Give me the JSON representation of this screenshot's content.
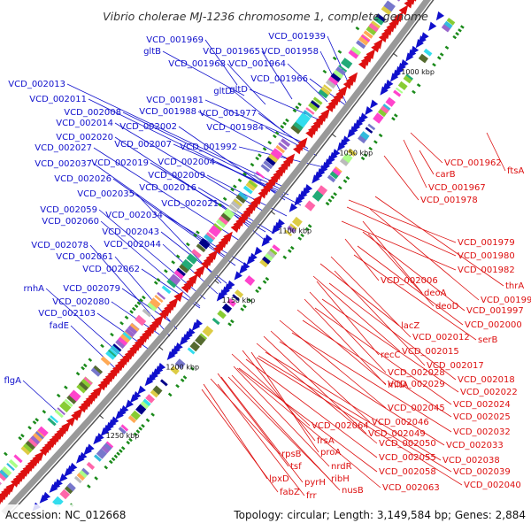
{
  "title": "Vibrio cholerae MJ-1236 chromosome 1, complete genome",
  "accession": "Accession: NC_012668",
  "summary": "Topology: circular; Length: 3,149,584 bp; Genes: 2,884",
  "ruler_labels": [
    "1000 kbp",
    "1050 kbp",
    "1100 kbp",
    "1150 kbp",
    "1200 kbp",
    "1250 kbp"
  ],
  "colors": {
    "reverse_strand": "#1010cc",
    "forward_strand": "#dd1010",
    "backbone": "#999999",
    "rna": "#1a8a1a"
  },
  "reverse_labels": [
    "VCD_001939",
    "VCD_001969",
    "gltB",
    "VCD_001965",
    "VCD_001958",
    "VCD_001968",
    "VCD_001964",
    "VCD_001966",
    "gltD",
    "gltD",
    "VCD_002013",
    "VCD_002011",
    "VCD_001981",
    "VCD_002008",
    "VCD_001988",
    "VCD_001977",
    "VCD_002014",
    "VCD_002002",
    "VCD_001984",
    "VCD_002020",
    "VCD_002007",
    "VCD_001992",
    "VCD_002027",
    "VCD_002037",
    "VCD_002019",
    "VCD_002004",
    "VCD_002009",
    "VCD_002026",
    "VCD_002016",
    "VCD_002035",
    "VCD_002021",
    "VCD_002059",
    "VCD_002034",
    "VCD_002060",
    "VCD_002043",
    "VCD_002078",
    "VCD_002044",
    "VCD_002061",
    "VCD_002062",
    "rnhA",
    "VCD_002079",
    "VCD_002080",
    "VCD_002103",
    "fadE",
    "flgA"
  ],
  "forward_labels": [
    "VCD_001962",
    "ftsA",
    "carB",
    "VCD_001967",
    "VCD_001978",
    "VCD_001979",
    "VCD_001980",
    "VCD_001982",
    "thrA",
    "VCD_002006",
    "deoA",
    "VCD_001991",
    "deoD",
    "VCD_001997",
    "VCD_002000",
    "lacZ",
    "VCD_002012",
    "serB",
    "VCD_002015",
    "recC",
    "VCD_002017",
    "VCD_002028",
    "VCD_002018",
    "mltA",
    "VCD_002029",
    "VCD_002022",
    "VCD_002024",
    "VCD_002045",
    "VCD_002025",
    "VCD_002046",
    "VCD_002064",
    "VCD_002049",
    "VCD_002032",
    "frsA",
    "VCD_002050",
    "VCD_002033",
    "proA",
    "rpsB",
    "VCD_002055",
    "VCD_002038",
    "tsf",
    "nrdR",
    "VCD_002058",
    "VCD_002039",
    "lpxD",
    "pyrH",
    "ribH",
    "VCD_002040",
    "fabZ",
    "frr",
    "nusB",
    "VCD_002063"
  ]
}
